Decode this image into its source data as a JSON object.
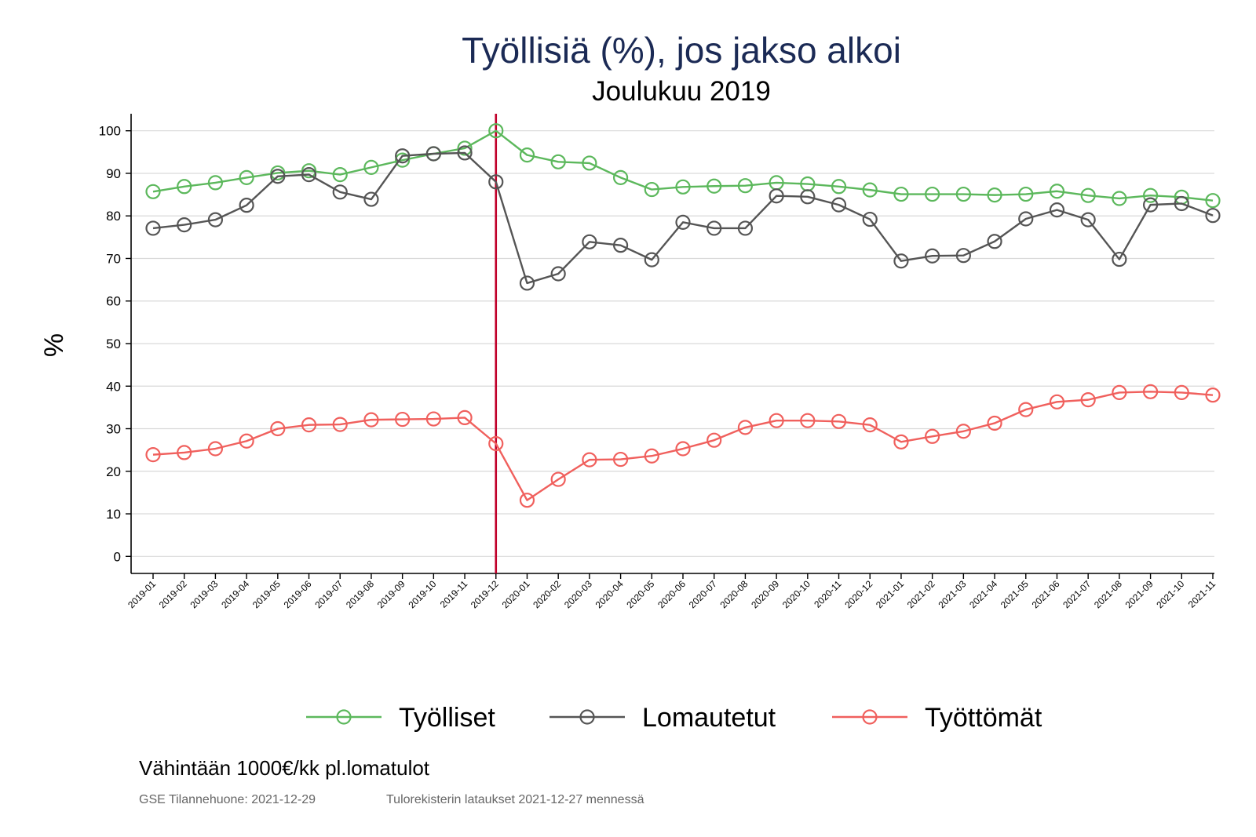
{
  "chart_data": {
    "type": "line",
    "title": "Työllisiä (%), jos jakso alkoi",
    "subtitle": "Joulukuu 2019",
    "ylabel": "%",
    "xlabel": "",
    "ylim": [
      -4,
      104
    ],
    "yticks": [
      0,
      10,
      20,
      30,
      40,
      50,
      60,
      70,
      80,
      90,
      100
    ],
    "grid": true,
    "legend_position": "bottom",
    "reference_line": {
      "x": "2019-12",
      "color": "#c0002a"
    },
    "categories": [
      "2019-01",
      "2019-02",
      "2019-03",
      "2019-04",
      "2019-05",
      "2019-06",
      "2019-07",
      "2019-08",
      "2019-09",
      "2019-10",
      "2019-11",
      "2019-12",
      "2020-01",
      "2020-02",
      "2020-03",
      "2020-04",
      "2020-05",
      "2020-06",
      "2020-07",
      "2020-08",
      "2020-09",
      "2020-10",
      "2020-11",
      "2020-12",
      "2021-01",
      "2021-02",
      "2021-03",
      "2021-04",
      "2021-05",
      "2021-06",
      "2021-07",
      "2021-08",
      "2021-09",
      "2021-10",
      "2021-11"
    ],
    "series": [
      {
        "name": "Työlliset",
        "color": "#5cb85c",
        "values": [
          85.7,
          86.9,
          87.8,
          89.0,
          90.1,
          90.6,
          89.7,
          91.4,
          93.1,
          94.6,
          95.9,
          100.0,
          94.3,
          92.7,
          92.4,
          89.0,
          86.2,
          86.8,
          87.0,
          87.1,
          87.8,
          87.5,
          86.9,
          86.1,
          85.1,
          85.1,
          85.1,
          84.9,
          85.1,
          85.8,
          84.8,
          84.1,
          84.8,
          84.4,
          83.6
        ]
      },
      {
        "name": "Lomautetut",
        "color": "#555555",
        "values": [
          77.1,
          77.9,
          79.1,
          82.5,
          89.3,
          89.7,
          85.6,
          83.9,
          94.1,
          94.6,
          94.8,
          88.0,
          64.2,
          66.4,
          73.9,
          73.1,
          69.7,
          78.5,
          77.1,
          77.1,
          84.7,
          84.5,
          82.6,
          79.2,
          69.4,
          70.6,
          70.7,
          74.0,
          79.3,
          81.4,
          79.1,
          69.8,
          82.6,
          82.9,
          80.1
        ]
      },
      {
        "name": "Työttömät",
        "color": "#f0605d",
        "values": [
          23.9,
          24.4,
          25.3,
          27.1,
          30.0,
          30.9,
          31.0,
          32.1,
          32.2,
          32.3,
          32.6,
          26.5,
          13.2,
          18.1,
          22.7,
          22.8,
          23.6,
          25.3,
          27.3,
          30.3,
          31.9,
          31.9,
          31.7,
          30.9,
          26.9,
          28.2,
          29.4,
          31.3,
          34.5,
          36.3,
          36.8,
          38.5,
          38.7,
          38.5,
          37.9
        ]
      }
    ],
    "note": "Vähintään 1000€/kk pl.lomatulot",
    "source_left": "GSE Tilannehuone: 2021-12-29",
    "source_right": "Tulorekisterin lataukset 2021-12-27 mennessä"
  },
  "colors": {
    "title": "#1b2a55",
    "reference_line": "#c0002a"
  }
}
